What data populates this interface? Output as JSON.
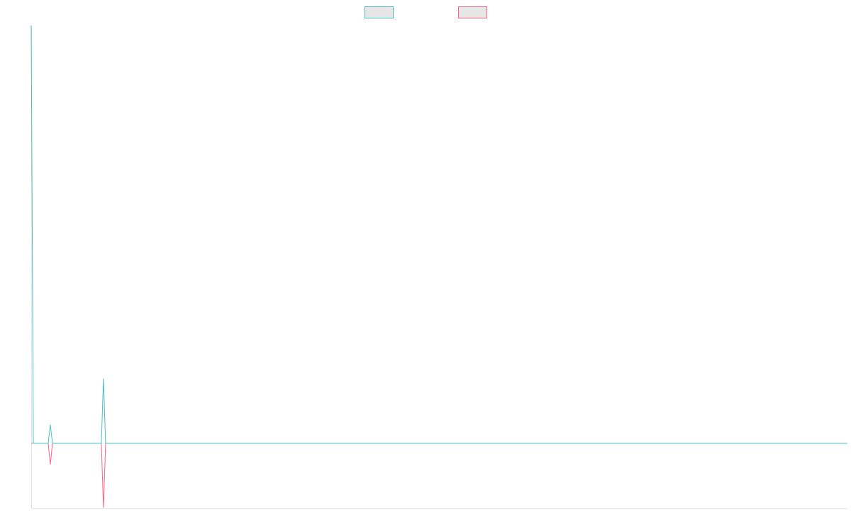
{
  "chart_data": {
    "type": "line",
    "x": [
      0,
      1,
      8,
      9,
      10,
      33,
      34,
      35,
      384
    ],
    "series": [
      {
        "color": "#4bc0c0",
        "values": [
          647,
          0,
          0,
          29,
          0,
          0,
          100,
          0,
          0
        ]
      },
      {
        "color": "#ff6384",
        "values": [
          0,
          0,
          0,
          -33,
          0,
          0,
          -100,
          0,
          0
        ]
      }
    ],
    "xlim": [
      0,
      384
    ],
    "ylim": [
      -100,
      647
    ],
    "legend": "top",
    "grid": false
  }
}
